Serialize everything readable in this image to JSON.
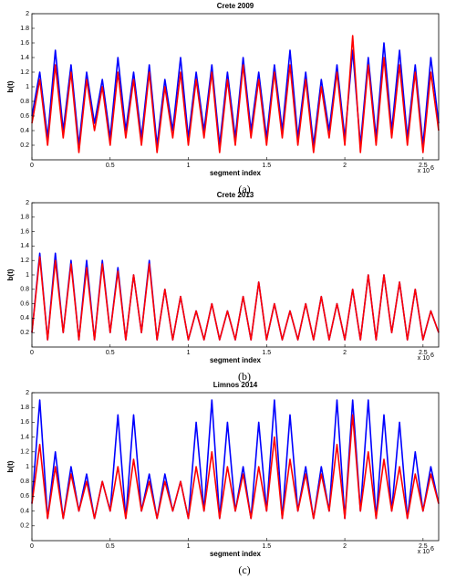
{
  "chart_data": [
    {
      "type": "line",
      "title": "Crete 2009",
      "xlabel": "segment index",
      "ylabel": "b(t)",
      "caption": "(a)",
      "x_multiplier": "x 10",
      "x_multiplier_exp": "6",
      "xlim": [
        0,
        2.6
      ],
      "ylim": [
        0,
        2
      ],
      "xticks": [
        0,
        0.5,
        1,
        1.5,
        2,
        2.5
      ],
      "yticks": [
        0.2,
        0.4,
        0.6,
        0.8,
        1,
        1.2,
        1.4,
        1.6,
        1.8,
        2
      ],
      "x": [
        0,
        0.05,
        0.1,
        0.15,
        0.2,
        0.25,
        0.3,
        0.35,
        0.4,
        0.45,
        0.5,
        0.55,
        0.6,
        0.65,
        0.7,
        0.75,
        0.8,
        0.85,
        0.9,
        0.95,
        1,
        1.05,
        1.1,
        1.15,
        1.2,
        1.25,
        1.3,
        1.35,
        1.4,
        1.45,
        1.5,
        1.55,
        1.6,
        1.65,
        1.7,
        1.75,
        1.8,
        1.85,
        1.9,
        1.95,
        2,
        2.05,
        2.1,
        2.15,
        2.2,
        2.25,
        2.3,
        2.35,
        2.4,
        2.45,
        2.5,
        2.55,
        2.6
      ],
      "series": [
        {
          "color": "#0000ff",
          "values": [
            0.6,
            1.2,
            0.3,
            1.5,
            0.4,
            1.3,
            0.2,
            1.2,
            0.5,
            1.1,
            0.3,
            1.4,
            0.4,
            1.2,
            0.3,
            1.3,
            0.2,
            1.1,
            0.4,
            1.4,
            0.3,
            1.2,
            0.4,
            1.3,
            0.2,
            1.2,
            0.3,
            1.4,
            0.4,
            1.2,
            0.3,
            1.3,
            0.4,
            1.5,
            0.3,
            1.2,
            0.2,
            1.1,
            0.4,
            1.3,
            0.3,
            1.5,
            0.2,
            1.4,
            0.3,
            1.6,
            0.4,
            1.5,
            0.3,
            1.3,
            0.2,
            1.4,
            0.5
          ]
        },
        {
          "color": "#ff0000",
          "values": [
            0.5,
            1.1,
            0.2,
            1.3,
            0.3,
            1.2,
            0.1,
            1.1,
            0.4,
            1.0,
            0.2,
            1.2,
            0.3,
            1.1,
            0.2,
            1.2,
            0.1,
            1.0,
            0.3,
            1.2,
            0.2,
            1.1,
            0.3,
            1.2,
            0.1,
            1.1,
            0.2,
            1.3,
            0.3,
            1.1,
            0.2,
            1.2,
            0.3,
            1.3,
            0.2,
            1.1,
            0.1,
            1.0,
            0.3,
            1.2,
            0.2,
            1.7,
            0.1,
            1.3,
            0.2,
            1.4,
            0.3,
            1.3,
            0.2,
            1.2,
            0.1,
            1.2,
            0.4
          ]
        }
      ]
    },
    {
      "type": "line",
      "title": "Crete 2013",
      "xlabel": "segment index",
      "ylabel": "b(t)",
      "caption": "(b)",
      "x_multiplier": "x 10",
      "x_multiplier_exp": "6",
      "xlim": [
        0,
        2.6
      ],
      "ylim": [
        0,
        2
      ],
      "xticks": [
        0,
        0.5,
        1,
        1.5,
        2,
        2.5
      ],
      "yticks": [
        0.2,
        0.4,
        0.6,
        0.8,
        1,
        1.2,
        1.4,
        1.6,
        1.8,
        2
      ],
      "x": [
        0,
        0.05,
        0.1,
        0.15,
        0.2,
        0.25,
        0.3,
        0.35,
        0.4,
        0.45,
        0.5,
        0.55,
        0.6,
        0.65,
        0.7,
        0.75,
        0.8,
        0.85,
        0.9,
        0.95,
        1,
        1.05,
        1.1,
        1.15,
        1.2,
        1.25,
        1.3,
        1.35,
        1.4,
        1.45,
        1.5,
        1.55,
        1.6,
        1.65,
        1.7,
        1.75,
        1.8,
        1.85,
        1.9,
        1.95,
        2,
        2.05,
        2.1,
        2.15,
        2.2,
        2.25,
        2.3,
        2.35,
        2.4,
        2.45,
        2.5,
        2.55,
        2.6
      ],
      "series": [
        {
          "color": "#0000ff",
          "values": [
            0.2,
            1.3,
            0.1,
            1.3,
            0.2,
            1.2,
            0.1,
            1.2,
            0.1,
            1.2,
            0.2,
            1.1,
            0.1,
            1.0,
            0.2,
            1.2,
            0.1,
            0.8,
            0.1,
            0.7,
            0.1,
            0.5,
            0.1,
            0.6,
            0.1,
            0.5,
            0.1,
            0.7,
            0.1,
            0.9,
            0.1,
            0.6,
            0.1,
            0.5,
            0.1,
            0.6,
            0.1,
            0.7,
            0.1,
            0.6,
            0.1,
            0.8,
            0.1,
            1.0,
            0.1,
            1.0,
            0.2,
            0.9,
            0.1,
            0.8,
            0.1,
            0.5,
            0.2
          ]
        },
        {
          "color": "#ff0000",
          "values": [
            0.2,
            1.25,
            0.1,
            1.2,
            0.2,
            1.15,
            0.1,
            1.1,
            0.1,
            1.15,
            0.2,
            1.05,
            0.1,
            1.0,
            0.2,
            1.15,
            0.1,
            0.8,
            0.1,
            0.7,
            0.1,
            0.5,
            0.1,
            0.6,
            0.1,
            0.5,
            0.1,
            0.7,
            0.1,
            0.9,
            0.1,
            0.6,
            0.1,
            0.5,
            0.1,
            0.6,
            0.1,
            0.7,
            0.1,
            0.6,
            0.1,
            0.8,
            0.1,
            1.0,
            0.1,
            1.0,
            0.2,
            0.9,
            0.1,
            0.8,
            0.1,
            0.5,
            0.2
          ]
        }
      ]
    },
    {
      "type": "line",
      "title": "Limnos 2014",
      "xlabel": "segment index",
      "ylabel": "b(t)",
      "caption": "(c)",
      "x_multiplier": "x 10",
      "x_multiplier_exp": "6",
      "xlim": [
        0,
        2.6
      ],
      "ylim": [
        0,
        2
      ],
      "xticks": [
        0,
        0.5,
        1,
        1.5,
        2,
        2.5
      ],
      "yticks": [
        0.2,
        0.4,
        0.6,
        0.8,
        1,
        1.2,
        1.4,
        1.6,
        1.8,
        2
      ],
      "x": [
        0,
        0.05,
        0.1,
        0.15,
        0.2,
        0.25,
        0.3,
        0.35,
        0.4,
        0.45,
        0.5,
        0.55,
        0.6,
        0.65,
        0.7,
        0.75,
        0.8,
        0.85,
        0.9,
        0.95,
        1,
        1.05,
        1.1,
        1.15,
        1.2,
        1.25,
        1.3,
        1.35,
        1.4,
        1.45,
        1.5,
        1.55,
        1.6,
        1.65,
        1.7,
        1.75,
        1.8,
        1.85,
        1.9,
        1.95,
        2,
        2.05,
        2.1,
        2.15,
        2.2,
        2.25,
        2.3,
        2.35,
        2.4,
        2.45,
        2.5,
        2.55,
        2.6
      ],
      "series": [
        {
          "color": "#0000ff",
          "values": [
            0.5,
            1.9,
            0.3,
            1.2,
            0.3,
            1.0,
            0.4,
            0.9,
            0.3,
            0.8,
            0.4,
            1.7,
            0.3,
            1.7,
            0.4,
            0.9,
            0.3,
            0.9,
            0.4,
            0.8,
            0.3,
            1.6,
            0.4,
            1.9,
            0.3,
            1.6,
            0.4,
            1.0,
            0.3,
            1.6,
            0.4,
            1.9,
            0.3,
            1.7,
            0.4,
            1.0,
            0.3,
            1.0,
            0.4,
            1.9,
            0.3,
            1.9,
            0.4,
            1.9,
            0.3,
            1.7,
            0.4,
            1.6,
            0.3,
            1.2,
            0.4,
            1.0,
            0.5
          ]
        },
        {
          "color": "#ff0000",
          "values": [
            0.5,
            1.3,
            0.3,
            1.0,
            0.3,
            0.9,
            0.4,
            0.8,
            0.3,
            0.8,
            0.4,
            1.0,
            0.3,
            1.1,
            0.4,
            0.8,
            0.3,
            0.8,
            0.4,
            0.8,
            0.3,
            1.0,
            0.4,
            1.2,
            0.3,
            1.0,
            0.4,
            0.9,
            0.3,
            1.0,
            0.4,
            1.4,
            0.3,
            1.1,
            0.4,
            0.9,
            0.3,
            0.9,
            0.4,
            1.3,
            0.3,
            1.7,
            0.4,
            1.2,
            0.3,
            1.1,
            0.4,
            1.0,
            0.3,
            0.9,
            0.4,
            0.9,
            0.5
          ]
        }
      ]
    }
  ]
}
